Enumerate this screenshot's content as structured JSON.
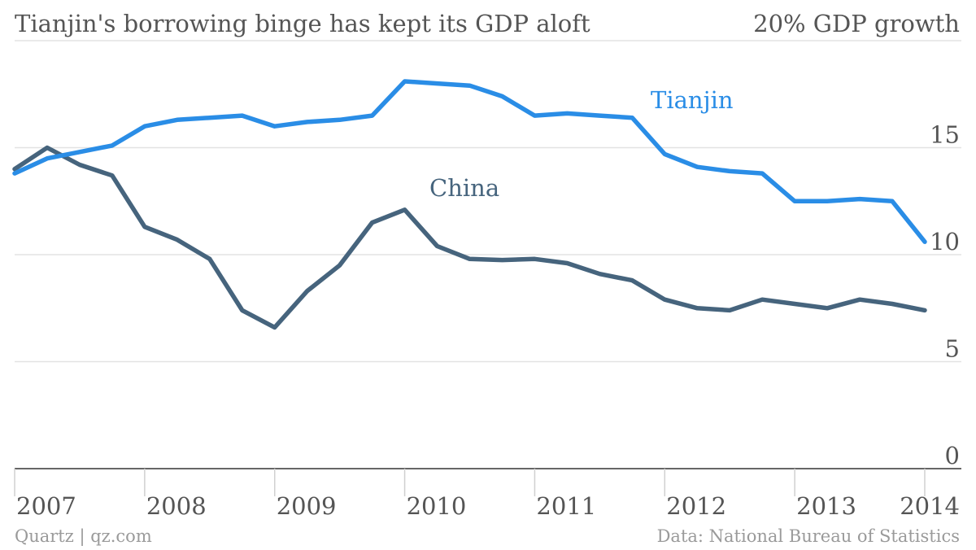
{
  "header": {
    "title": "Tianjin's borrowing binge has kept its GDP aloft",
    "unit_label": "20% GDP growth"
  },
  "footer": {
    "credit": "Quartz | qz.com",
    "source": "Data: National Bureau of Statistics"
  },
  "chart_data": {
    "type": "line",
    "title": "Tianjin's borrowing binge has kept its GDP aloft",
    "ylabel": "20% GDP growth",
    "ylim": [
      0,
      20
    ],
    "y_ticks": [
      0,
      5,
      10,
      15
    ],
    "x_range": [
      2007.0,
      2014.0
    ],
    "x_ticks": [
      2007,
      2008,
      2009,
      2010,
      2011,
      2012,
      2013,
      2014
    ],
    "grid": true,
    "series": [
      {
        "name": "Tianjin",
        "color": "#2a8de6",
        "x": [
          2007.0,
          2007.25,
          2007.5,
          2007.75,
          2008.0,
          2008.25,
          2008.5,
          2008.75,
          2009.0,
          2009.25,
          2009.5,
          2009.75,
          2010.0,
          2010.25,
          2010.5,
          2010.75,
          2011.0,
          2011.25,
          2011.5,
          2011.75,
          2012.0,
          2012.25,
          2012.5,
          2012.75,
          2013.0,
          2013.25,
          2013.5,
          2013.75,
          2014.0
        ],
        "values": [
          13.8,
          14.5,
          14.8,
          15.1,
          16.0,
          16.3,
          16.4,
          16.5,
          16.0,
          16.2,
          16.3,
          16.5,
          18.1,
          18.0,
          17.9,
          17.4,
          16.5,
          16.6,
          16.5,
          16.4,
          14.7,
          14.1,
          13.9,
          13.8,
          12.5,
          12.5,
          12.6,
          12.5,
          10.6
        ]
      },
      {
        "name": "China",
        "color": "#46647d",
        "x": [
          2007.0,
          2007.25,
          2007.5,
          2007.75,
          2008.0,
          2008.25,
          2008.5,
          2008.75,
          2009.0,
          2009.25,
          2009.5,
          2009.75,
          2010.0,
          2010.25,
          2010.5,
          2010.75,
          2011.0,
          2011.25,
          2011.5,
          2011.75,
          2012.0,
          2012.25,
          2012.5,
          2012.75,
          2013.0,
          2013.25,
          2013.5,
          2013.75,
          2014.0
        ],
        "values": [
          14.0,
          15.0,
          14.2,
          13.7,
          11.3,
          10.7,
          9.8,
          7.4,
          6.6,
          8.3,
          9.5,
          11.5,
          12.1,
          10.4,
          9.8,
          9.75,
          9.8,
          9.6,
          9.1,
          8.8,
          7.9,
          7.5,
          7.4,
          7.9,
          7.7,
          7.5,
          7.9,
          7.7,
          7.4
        ]
      }
    ],
    "annotations": [
      {
        "text": "Tianjin",
        "series": "Tianjin"
      },
      {
        "text": "China",
        "series": "China"
      }
    ]
  }
}
